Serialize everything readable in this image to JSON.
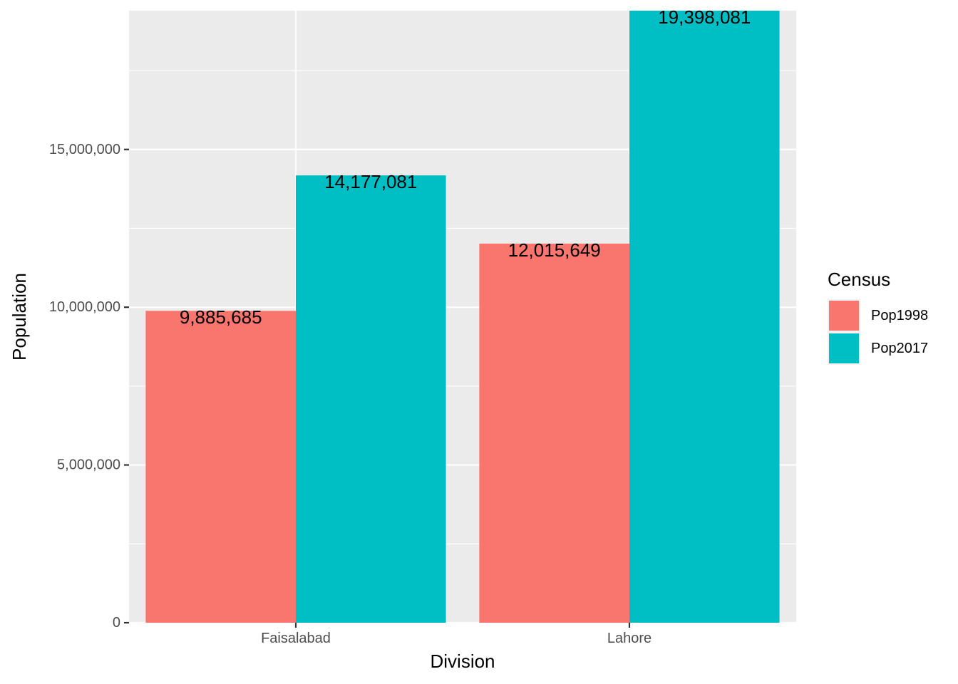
{
  "chart_data": {
    "type": "bar",
    "categories": [
      "Faisalabad",
      "Lahore"
    ],
    "series": [
      {
        "name": "Pop1998",
        "values": [
          9885685,
          12015649
        ],
        "color": "#F8766D"
      },
      {
        "name": "Pop2017",
        "values": [
          14177081,
          19398081
        ],
        "color": "#00BFC4"
      }
    ],
    "data_labels": [
      [
        "9,885,685",
        "12,015,649"
      ],
      [
        "14,177,081",
        "19,398,081"
      ]
    ],
    "title": "",
    "xlabel": "Division",
    "ylabel": "Population",
    "ylim": [
      0,
      19398081
    ],
    "yticks": [
      0,
      5000000,
      10000000,
      15000000
    ],
    "ytick_labels": [
      "0",
      "5,000,000",
      "10,000,000",
      "15,000,000"
    ],
    "grid": true,
    "legend": {
      "title": "Census",
      "placement": "right",
      "entries": [
        "Pop1998",
        "Pop2017"
      ]
    },
    "colors": {
      "panel_background": "#EBEBEB",
      "grid": "#FFFFFF",
      "tick_text": "#4D4D4D",
      "tick_mark": "#333333"
    }
  }
}
